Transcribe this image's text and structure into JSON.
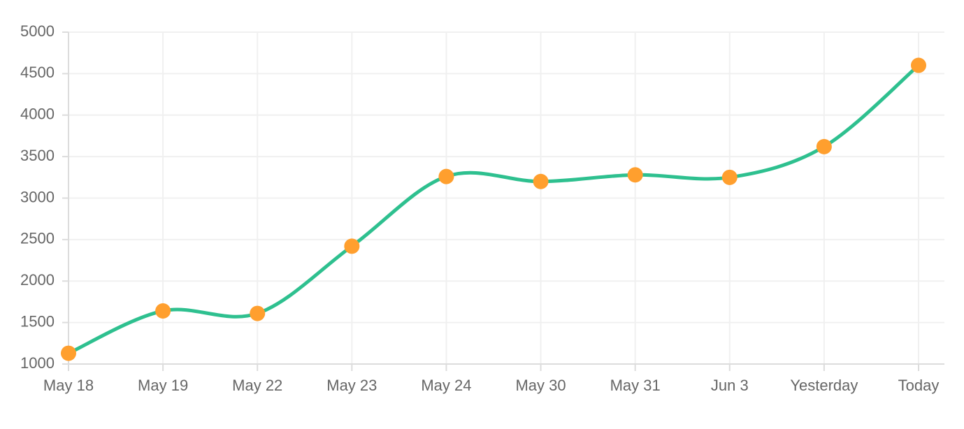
{
  "chart_data": {
    "type": "line",
    "title": "",
    "xlabel": "",
    "ylabel": "",
    "categories": [
      "May 18",
      "May 19",
      "May 22",
      "May 23",
      "May 24",
      "May 30",
      "May 31",
      "Jun 3",
      "Yesterday",
      "Today"
    ],
    "series": [
      {
        "values": [
          1130,
          1640,
          1610,
          2420,
          3260,
          3200,
          3280,
          3250,
          3620,
          4600
        ],
        "line_color": "#2ec08f",
        "point_color": "#ff9f2e"
      }
    ],
    "ylim": [
      1000,
      5000
    ],
    "yticks": [
      1000,
      1500,
      2000,
      2500,
      3000,
      3500,
      4000,
      4500,
      5000
    ],
    "grid": true,
    "legend": "none",
    "curve": "smooth"
  }
}
